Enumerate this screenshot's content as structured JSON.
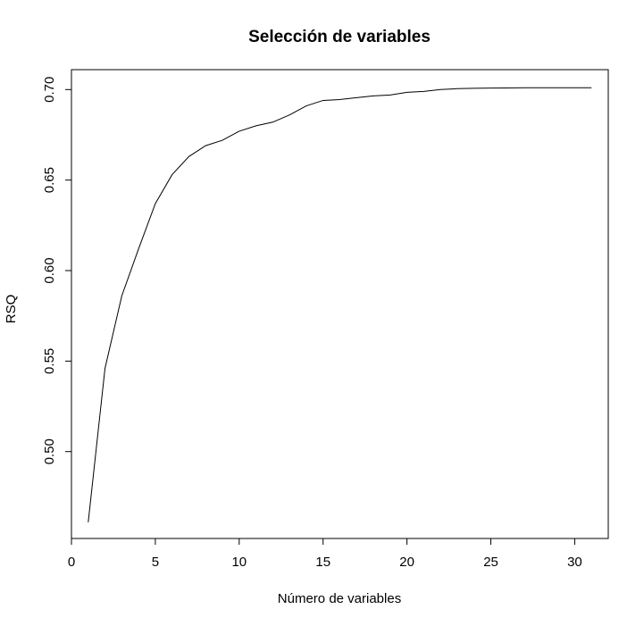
{
  "chart_data": {
    "type": "line",
    "title": "Selección de variables",
    "xlabel": "Número de variables",
    "ylabel": "RSQ",
    "xlim": [
      0,
      32
    ],
    "ylim": [
      0.452,
      0.711
    ],
    "x_ticks": [
      0,
      5,
      10,
      15,
      20,
      25,
      30
    ],
    "y_ticks": [
      0.5,
      0.55,
      0.6,
      0.65,
      0.7
    ],
    "x_tick_labels": [
      "0",
      "5",
      "10",
      "15",
      "20",
      "25",
      "30"
    ],
    "y_tick_labels": [
      "0.50",
      "0.55",
      "0.60",
      "0.65",
      "0.70"
    ],
    "grid": false,
    "series": [
      {
        "x": [
          1,
          2,
          3,
          4,
          5,
          6,
          7,
          8,
          9,
          10,
          11,
          12,
          13,
          14,
          15,
          16,
          17,
          18,
          19,
          20,
          21,
          22,
          23,
          24,
          25,
          26,
          27,
          28,
          29,
          30,
          31
        ],
        "values": [
          0.461,
          0.546,
          0.586,
          0.612,
          0.637,
          0.653,
          0.663,
          0.669,
          0.672,
          0.677,
          0.68,
          0.682,
          0.686,
          0.691,
          0.694,
          0.6945,
          0.6955,
          0.6965,
          0.697,
          0.6985,
          0.699,
          0.7,
          0.7005,
          0.7007,
          0.7008,
          0.7009,
          0.701,
          0.701,
          0.701,
          0.701,
          0.701
        ]
      }
    ]
  }
}
